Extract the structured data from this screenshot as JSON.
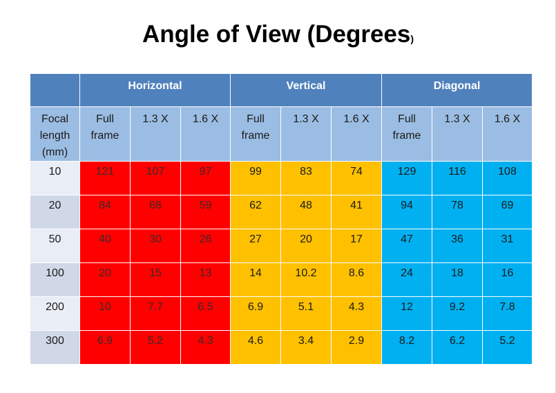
{
  "title": "Angle of View (Degrees",
  "title_suffix": ")",
  "groups": [
    "Horizontal",
    "Vertical",
    "Diagonal"
  ],
  "subheaders": {
    "focal": [
      "Focal",
      "length",
      "(mm)"
    ],
    "full": [
      "Full",
      "frame"
    ],
    "x13": "1.3 X",
    "x16": "1.6 X"
  },
  "rows": [
    {
      "focal": "10",
      "h": [
        "121",
        "107",
        "97"
      ],
      "v": [
        "99",
        "83",
        "74"
      ],
      "d": [
        "129",
        "116",
        "108"
      ]
    },
    {
      "focal": "20",
      "h": [
        "84",
        "68",
        "59"
      ],
      "v": [
        "62",
        "48",
        "41"
      ],
      "d": [
        "94",
        "78",
        "69"
      ]
    },
    {
      "focal": "50",
      "h": [
        "40",
        "30",
        "26"
      ],
      "v": [
        "27",
        "20",
        "17"
      ],
      "d": [
        "47",
        "36",
        "31"
      ]
    },
    {
      "focal": "100",
      "h": [
        "20",
        "15",
        "13"
      ],
      "v": [
        "14",
        "10.2",
        "8.6"
      ],
      "d": [
        "24",
        "18",
        "16"
      ]
    },
    {
      "focal": "200",
      "h": [
        "10",
        "7.7",
        "6.5"
      ],
      "v": [
        "6.9",
        "5.1",
        "4.3"
      ],
      "d": [
        "12",
        "9.2",
        "7.8"
      ]
    },
    {
      "focal": "300",
      "h": [
        "6.9",
        "5.2",
        "4.3"
      ],
      "v": [
        "4.6",
        "3.4",
        "2.9"
      ],
      "d": [
        "8.2",
        "6.2",
        "5.2"
      ]
    }
  ],
  "colors": {
    "header_dark": "#4f81bd",
    "header_light": "#9bbde3",
    "horizontal": "#ff0000",
    "vertical": "#ffc000",
    "diagonal": "#00b0f0"
  }
}
